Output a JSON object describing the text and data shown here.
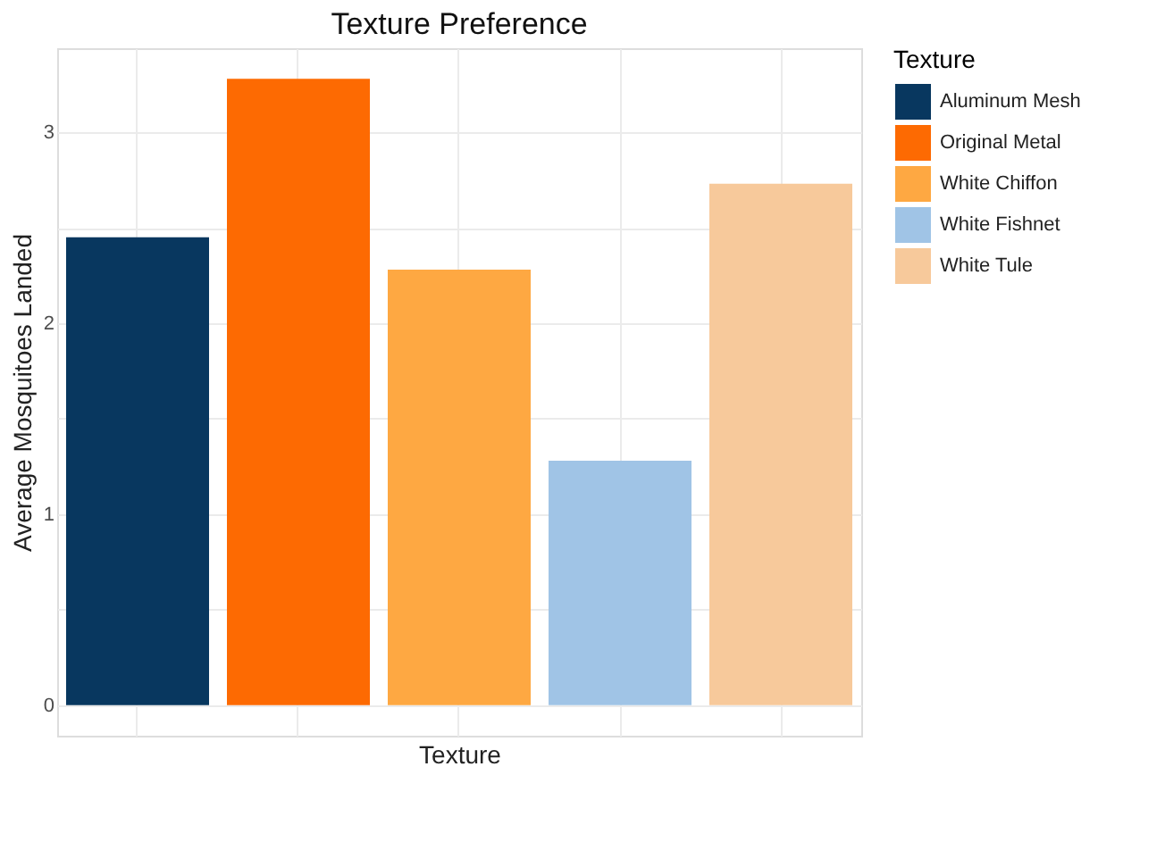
{
  "chart_data": {
    "type": "bar",
    "title": "Texture Preference",
    "xlabel": "Texture",
    "ylabel": "Average Mosquitoes Landed",
    "legend_title": "Texture",
    "categories": [
      null,
      null,
      null,
      null,
      null
    ],
    "series": [
      {
        "name": "Aluminum Mesh",
        "color": "#08375f",
        "values": [
          2.45,
          null,
          null,
          null,
          null
        ]
      },
      {
        "name": "Original Metal",
        "color": "#fd6a02",
        "values": [
          null,
          3.28,
          null,
          null,
          null
        ]
      },
      {
        "name": "White Chiffon",
        "color": "#fea842",
        "values": [
          null,
          null,
          2.28,
          null,
          null
        ]
      },
      {
        "name": "White Fishnet",
        "color": "#a0c4e6",
        "values": [
          null,
          null,
          null,
          1.28,
          null
        ]
      },
      {
        "name": "White Tule",
        "color": "#f7c99b",
        "values": [
          null,
          null,
          null,
          null,
          2.73
        ]
      }
    ],
    "ylim": [
      -0.16,
      3.44
    ],
    "yticks": [
      0,
      {
        "value": 0.5,
        "label": null
      },
      1,
      {
        "value": 1.5,
        "label": null
      },
      2,
      {
        "value": 2.5,
        "label": null
      },
      3
    ],
    "grid": true,
    "legend": "right",
    "tick_labels": "y"
  }
}
